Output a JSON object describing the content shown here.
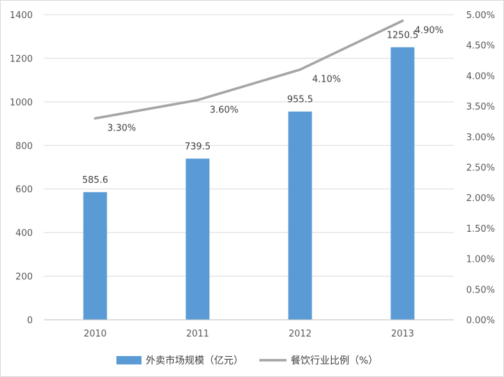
{
  "chart_data": {
    "type": "bar",
    "categories": [
      "2010",
      "2011",
      "2012",
      "2013"
    ],
    "series": [
      {
        "name": "外卖市场规模（亿元）",
        "type": "bar",
        "axis": "left",
        "color": "#5b9bd5",
        "values": [
          585.6,
          739.5,
          955.5,
          1250.5
        ],
        "labels": [
          "585.6",
          "739.5",
          "955.5",
          "1250.5"
        ]
      },
      {
        "name": "餐饮行业比例（%）",
        "type": "line",
        "axis": "right",
        "color": "#a5a5a5",
        "values": [
          3.3,
          3.6,
          4.1,
          4.9
        ],
        "labels": [
          "3.30%",
          "3.60%",
          "4.10%",
          "4.90%"
        ]
      }
    ],
    "y_left": {
      "ylim": [
        0,
        1400
      ],
      "ticks": [
        "0",
        "200",
        "400",
        "600",
        "800",
        "1000",
        "1200",
        "1400"
      ]
    },
    "y_right": {
      "ylim": [
        0,
        5
      ],
      "ticks": [
        "0.00%",
        "0.50%",
        "1.00%",
        "1.50%",
        "2.00%",
        "2.50%",
        "3.00%",
        "3.50%",
        "4.00%",
        "4.50%",
        "5.00%"
      ]
    },
    "grid": true,
    "legend": "bottom"
  }
}
